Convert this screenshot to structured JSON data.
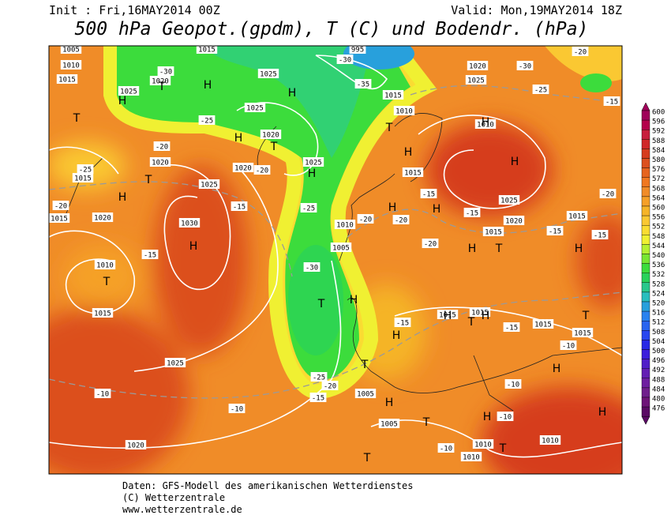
{
  "header": {
    "init": "Init : Fri,16MAY2014 00Z",
    "valid": "Valid: Mon,19MAY2014 18Z",
    "title": "500 hPa Geopot.(gpdm), T (C) und Bodendr. (hPa)"
  },
  "legend": {
    "levels": [
      600,
      596,
      592,
      588,
      584,
      580,
      576,
      572,
      568,
      564,
      560,
      556,
      552,
      548,
      544,
      540,
      536,
      532,
      528,
      524,
      520,
      516,
      512,
      508,
      504,
      500,
      496,
      492,
      488,
      484,
      480,
      476
    ],
    "colors": [
      "#a0005a",
      "#b4004b",
      "#c81e3c",
      "#d02828",
      "#d63c1e",
      "#dc501e",
      "#e6641e",
      "#f07820",
      "#f08c28",
      "#f5a028",
      "#f5b428",
      "#fac832",
      "#fadc32",
      "#f0f032",
      "#b4f032",
      "#78e632",
      "#3cdc3c",
      "#28d25a",
      "#28c88c",
      "#28bebe",
      "#28a0dc",
      "#2882f0",
      "#2864f0",
      "#2846f0",
      "#2828e6",
      "#3c1edc",
      "#501ec8",
      "#641eb4",
      "#6e1ea0",
      "#701e8c",
      "#6e1478",
      "#5a0a64"
    ]
  },
  "map_labels": [
    "1005",
    "1010",
    "1015",
    "1015",
    "1020",
    "1025",
    "1025",
    "1025",
    "1020",
    "1025",
    "1020",
    "1020",
    "1015",
    "1025",
    "1030",
    "1020",
    "1015",
    "1010",
    "1015",
    "1025",
    "1020",
    "1010",
    "1005",
    "1010",
    "1015",
    "1020",
    "1025",
    "1010",
    "1015",
    "1025",
    "1020",
    "1015",
    "1015",
    "1015",
    "1015",
    "1015",
    "1015",
    "1005",
    "1005",
    "1010",
    "1010",
    "1010",
    "995",
    "-30",
    "-35",
    "-30",
    "-25",
    "-20",
    "-25",
    "-20",
    "-15",
    "-15",
    "-20",
    "-25",
    "-20",
    "-30",
    "-25",
    "-20",
    "-15",
    "-15",
    "-10",
    "-10",
    "-10",
    "-10",
    "-10",
    "-20",
    "-15",
    "-20",
    "-15",
    "-15",
    "-15",
    "-10",
    "-25",
    "-30",
    "-20",
    "-15",
    "-20",
    "-15"
  ],
  "highs": [
    "H",
    "H",
    "H",
    "H",
    "H",
    "H",
    "H",
    "H",
    "H",
    "H",
    "H",
    "H",
    "H",
    "H",
    "H",
    "H",
    "H",
    "H",
    "H",
    "H",
    "H",
    "H"
  ],
  "lows": [
    "T",
    "T",
    "T",
    "T",
    "T",
    "T",
    "T",
    "T",
    "T",
    "T",
    "T",
    "T",
    "T",
    "T"
  ],
  "footer": [
    "Daten: GFS-Modell des amerikanischen Wetterdienstes",
    "(C) Wetterzentrale",
    "www.wetterzentrale.de"
  ]
}
